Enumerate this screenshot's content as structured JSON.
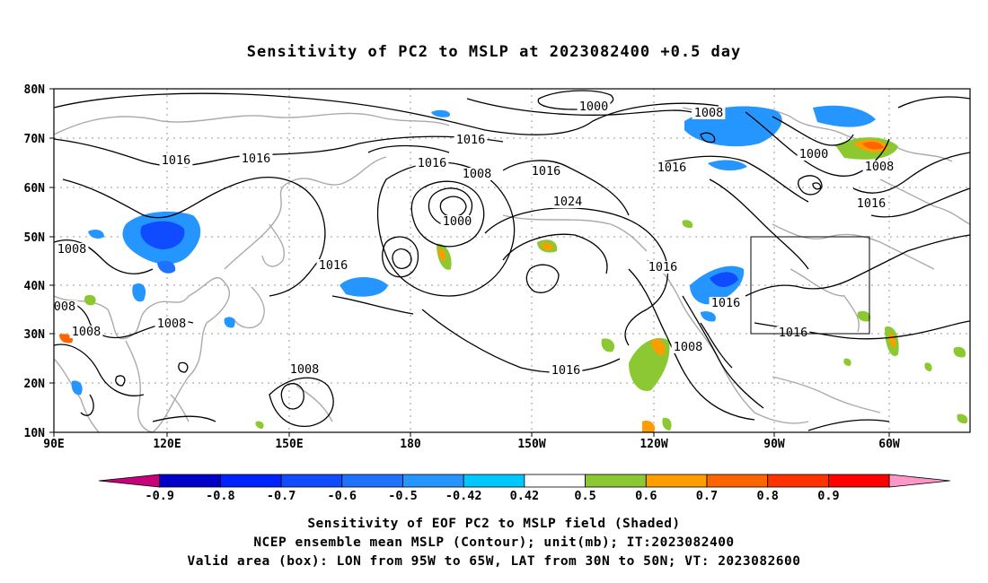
{
  "title": "Sensitivity of PC2 to MSLP at 2023082400 +0.5 day",
  "map": {
    "lat_labels": [
      "80N",
      "70N",
      "60N",
      "50N",
      "40N",
      "30N",
      "20N",
      "10N"
    ],
    "lon_labels": [
      "90E",
      "120E",
      "150E",
      "180",
      "150W",
      "120W",
      "90W",
      "60W"
    ],
    "contour_labels": [
      {
        "text": "1000"
      },
      {
        "text": "1008"
      },
      {
        "text": "1016"
      },
      {
        "text": "1016"
      },
      {
        "text": "1016"
      },
      {
        "text": "1008"
      },
      {
        "text": "1000"
      },
      {
        "text": "1016"
      },
      {
        "text": "1016"
      },
      {
        "text": "1016"
      },
      {
        "text": "1024"
      },
      {
        "text": "1008"
      },
      {
        "text": "1016"
      },
      {
        "text": "1000"
      },
      {
        "text": "1008"
      },
      {
        "text": "1016"
      },
      {
        "text": "1016"
      },
      {
        "text": "1008"
      },
      {
        "text": "008"
      },
      {
        "text": "1008"
      },
      {
        "text": "1008"
      },
      {
        "text": "1008"
      },
      {
        "text": "1016"
      },
      {
        "text": "1016"
      },
      {
        "text": "1008"
      },
      {
        "text": "1016"
      },
      {
        "text": "1016"
      }
    ]
  },
  "colorbar": {
    "colors": [
      "#c8007a",
      "#0000c8",
      "#0022ff",
      "#0f4cff",
      "#1e72ff",
      "#2596ff",
      "#00c8ff",
      "#ffffff",
      "#8cc832",
      "#ff9c00",
      "#ff6400",
      "#ff3200",
      "#ff0000",
      "#ff96c8"
    ],
    "labels": [
      "-0.9",
      "-0.8",
      "-0.7",
      "-0.6",
      "-0.5",
      "-0.42",
      "0.42",
      "0.5",
      "0.6",
      "0.7",
      "0.8",
      "0.9"
    ]
  },
  "captions": {
    "line1": "Sensitivity of EOF PC2 to MSLP field (Shaded)",
    "line2": "NCEP ensemble mean MSLP (Contour); unit(mb); IT:2023082400",
    "line3": "Valid area (box): LON from 95W to 65W, LAT from 30N to 50N; VT: 2023082600"
  }
}
